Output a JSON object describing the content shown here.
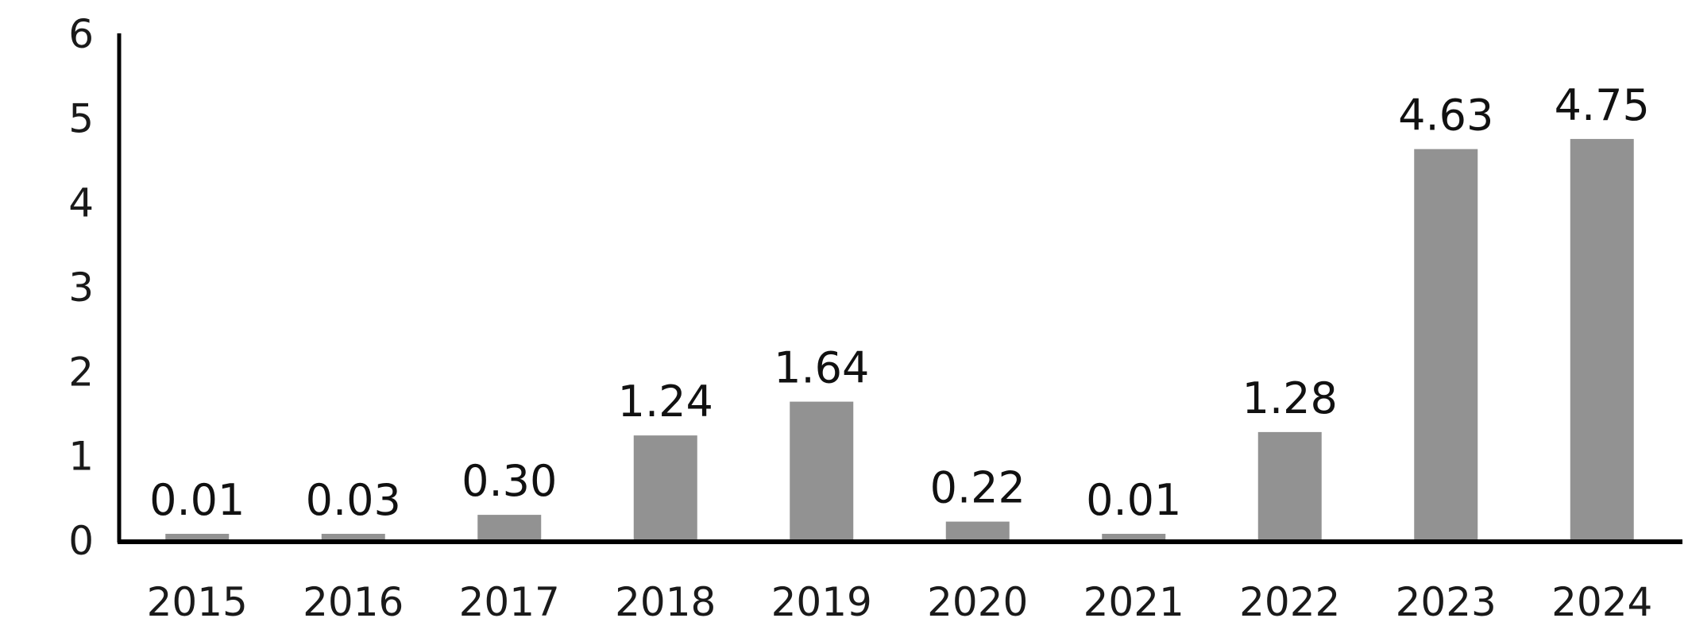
{
  "chart_data": {
    "type": "bar",
    "title": "",
    "xlabel": "",
    "ylabel": "",
    "categories": [
      "2015",
      "2016",
      "2017",
      "2018",
      "2019",
      "2020",
      "2021",
      "2022",
      "2023",
      "2024"
    ],
    "values": [
      0.01,
      0.03,
      0.3,
      1.24,
      1.64,
      0.22,
      0.01,
      1.28,
      4.63,
      4.75
    ],
    "data_labels": [
      "0.01",
      "0.03",
      "0.30",
      "1.24",
      "1.64",
      "0.22",
      "0.01",
      "1.28",
      "4.63",
      "4.75"
    ],
    "ylim": [
      0,
      6
    ],
    "y_ticks": [
      0,
      1,
      2,
      3,
      4,
      5,
      6
    ],
    "grid": false,
    "legend": "none",
    "colors": {
      "bar": "#929292",
      "axis": "#000000",
      "text": "#111111"
    }
  }
}
